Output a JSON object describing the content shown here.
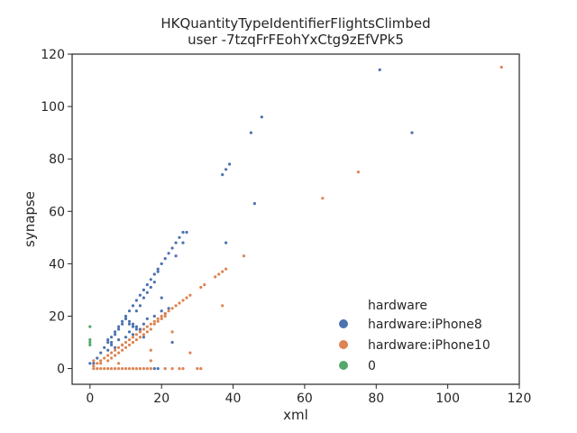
{
  "chart_data": {
    "type": "scatter",
    "title": "HKQuantityTypeIdentifierFlightsClimbed",
    "subtitle": "user -7tzqFrFEohYxCtg9zEfVPk5",
    "xlabel": "xml",
    "ylabel": "synapse",
    "xlim": [
      -5,
      120
    ],
    "ylim": [
      -6,
      120
    ],
    "xticks": [
      0,
      20,
      40,
      60,
      80,
      100,
      120
    ],
    "yticks": [
      0,
      20,
      40,
      60,
      80,
      100,
      120
    ],
    "grid": false,
    "legend": {
      "title": "hardware",
      "placement": "lower-right"
    },
    "series": [
      {
        "name": " hardware:iPhone8",
        "color": "#4c72b0",
        "points": [
          [
            0,
            2
          ],
          [
            1,
            2
          ],
          [
            2,
            4
          ],
          [
            3,
            6
          ],
          [
            4,
            8
          ],
          [
            5,
            10
          ],
          [
            6,
            12
          ],
          [
            7,
            14
          ],
          [
            8,
            16
          ],
          [
            9,
            18
          ],
          [
            10,
            20
          ],
          [
            11,
            22
          ],
          [
            12,
            24
          ],
          [
            13,
            26
          ],
          [
            14,
            28
          ],
          [
            15,
            30
          ],
          [
            16,
            32
          ],
          [
            17,
            34
          ],
          [
            18,
            36
          ],
          [
            19,
            38
          ],
          [
            20,
            40
          ],
          [
            21,
            42
          ],
          [
            22,
            44
          ],
          [
            23,
            46
          ],
          [
            24,
            48
          ],
          [
            25,
            50
          ],
          [
            26,
            52
          ],
          [
            27,
            52
          ],
          [
            5,
            11
          ],
          [
            6,
            10
          ],
          [
            7,
            13
          ],
          [
            8,
            15
          ],
          [
            9,
            17
          ],
          [
            10,
            19
          ],
          [
            11,
            18
          ],
          [
            12,
            17
          ],
          [
            13,
            22
          ],
          [
            14,
            24
          ],
          [
            15,
            27
          ],
          [
            16,
            29
          ],
          [
            17,
            31
          ],
          [
            18,
            33
          ],
          [
            19,
            37
          ],
          [
            20,
            27
          ],
          [
            21,
            21
          ],
          [
            22,
            23
          ],
          [
            24,
            43
          ],
          [
            26,
            48
          ],
          [
            5,
            7
          ],
          [
            6,
            9
          ],
          [
            7,
            8
          ],
          [
            8,
            11
          ],
          [
            9,
            9
          ],
          [
            10,
            12
          ],
          [
            11,
            14
          ],
          [
            12,
            13
          ],
          [
            13,
            16
          ],
          [
            14,
            15
          ],
          [
            15,
            17
          ],
          [
            16,
            19
          ],
          [
            18,
            20
          ],
          [
            20,
            22
          ],
          [
            11,
            17
          ],
          [
            12,
            16
          ],
          [
            13,
            15
          ],
          [
            14,
            14
          ],
          [
            15,
            12
          ],
          [
            23,
            10
          ],
          [
            19,
            0
          ],
          [
            18,
            0
          ],
          [
            37,
            74
          ],
          [
            38,
            76
          ],
          [
            39,
            78
          ],
          [
            38,
            48
          ],
          [
            45,
            90
          ],
          [
            46,
            63
          ],
          [
            48,
            96
          ],
          [
            81,
            114
          ],
          [
            90,
            90
          ]
        ]
      },
      {
        "name": " hardware:iPhone10",
        "color": "#dd8452",
        "points": [
          [
            1,
            0
          ],
          [
            2,
            0
          ],
          [
            3,
            0
          ],
          [
            4,
            0
          ],
          [
            5,
            0
          ],
          [
            6,
            0
          ],
          [
            7,
            0
          ],
          [
            8,
            0
          ],
          [
            9,
            0
          ],
          [
            10,
            0
          ],
          [
            11,
            0
          ],
          [
            12,
            0
          ],
          [
            13,
            0
          ],
          [
            14,
            0
          ],
          [
            15,
            0
          ],
          [
            16,
            0
          ],
          [
            17,
            0
          ],
          [
            21,
            0
          ],
          [
            23,
            0
          ],
          [
            25,
            0
          ],
          [
            26,
            0
          ],
          [
            30,
            0
          ],
          [
            31,
            0
          ],
          [
            1,
            1
          ],
          [
            2,
            2
          ],
          [
            3,
            3
          ],
          [
            4,
            4
          ],
          [
            5,
            5
          ],
          [
            6,
            6
          ],
          [
            7,
            7
          ],
          [
            8,
            8
          ],
          [
            9,
            9
          ],
          [
            10,
            10
          ],
          [
            11,
            11
          ],
          [
            12,
            12
          ],
          [
            13,
            13
          ],
          [
            14,
            14
          ],
          [
            15,
            15
          ],
          [
            16,
            16
          ],
          [
            17,
            17
          ],
          [
            18,
            18
          ],
          [
            19,
            19
          ],
          [
            20,
            20
          ],
          [
            21,
            21
          ],
          [
            22,
            22
          ],
          [
            23,
            23
          ],
          [
            24,
            24
          ],
          [
            25,
            25
          ],
          [
            26,
            26
          ],
          [
            27,
            27
          ],
          [
            28,
            28
          ],
          [
            3,
            2
          ],
          [
            5,
            3
          ],
          [
            6,
            4
          ],
          [
            7,
            5
          ],
          [
            8,
            6
          ],
          [
            9,
            7
          ],
          [
            10,
            8
          ],
          [
            11,
            9
          ],
          [
            12,
            10
          ],
          [
            13,
            11
          ],
          [
            14,
            12
          ],
          [
            15,
            13
          ],
          [
            16,
            14
          ],
          [
            17,
            15
          ],
          [
            18,
            17
          ],
          [
            19,
            18
          ],
          [
            20,
            19
          ],
          [
            21,
            20
          ],
          [
            1,
            3
          ],
          [
            8,
            2
          ],
          [
            17,
            3
          ],
          [
            17,
            7
          ],
          [
            23,
            14
          ],
          [
            28,
            6
          ],
          [
            31,
            31
          ],
          [
            32,
            32
          ],
          [
            35,
            35
          ],
          [
            36,
            36
          ],
          [
            37,
            37
          ],
          [
            38,
            38
          ],
          [
            37,
            24
          ],
          [
            43,
            43
          ],
          [
            65,
            65
          ],
          [
            75,
            75
          ],
          [
            115,
            115
          ]
        ]
      },
      {
        "name": "0",
        "color": "#55a868",
        "points": [
          [
            0,
            16
          ],
          [
            0,
            11
          ],
          [
            0,
            10
          ],
          [
            0,
            9
          ]
        ]
      }
    ]
  }
}
